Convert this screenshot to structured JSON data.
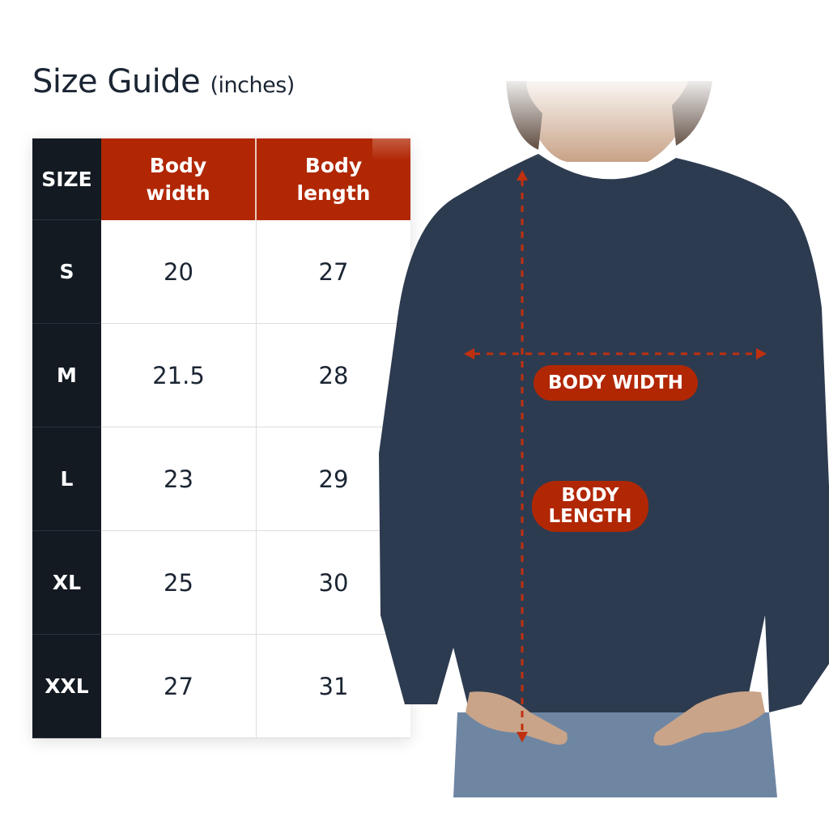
{
  "title": "Size Guide",
  "unit": "(inches)",
  "table": {
    "headers": [
      "SIZE",
      "Body\nwidth",
      "Body\nlength"
    ],
    "header_lines": {
      "size": "SIZE",
      "width_1": "Body",
      "width_2": "width",
      "length_1": "Body",
      "length_2": "length"
    },
    "rows": [
      {
        "size": "S",
        "width": "20",
        "length": "27"
      },
      {
        "size": "M",
        "width": "21.5",
        "length": "28"
      },
      {
        "size": "L",
        "width": "23",
        "length": "29"
      },
      {
        "size": "XL",
        "width": "25",
        "length": "30"
      },
      {
        "size": "XXL",
        "width": "27",
        "length": "31"
      }
    ]
  },
  "labels": {
    "body_width": "BODY WIDTH",
    "body_length_1": "BODY",
    "body_length_2": "LENGTH"
  },
  "colors": {
    "accent": "#b12704",
    "dark": "#131a22",
    "garment": "#2d3b50"
  }
}
